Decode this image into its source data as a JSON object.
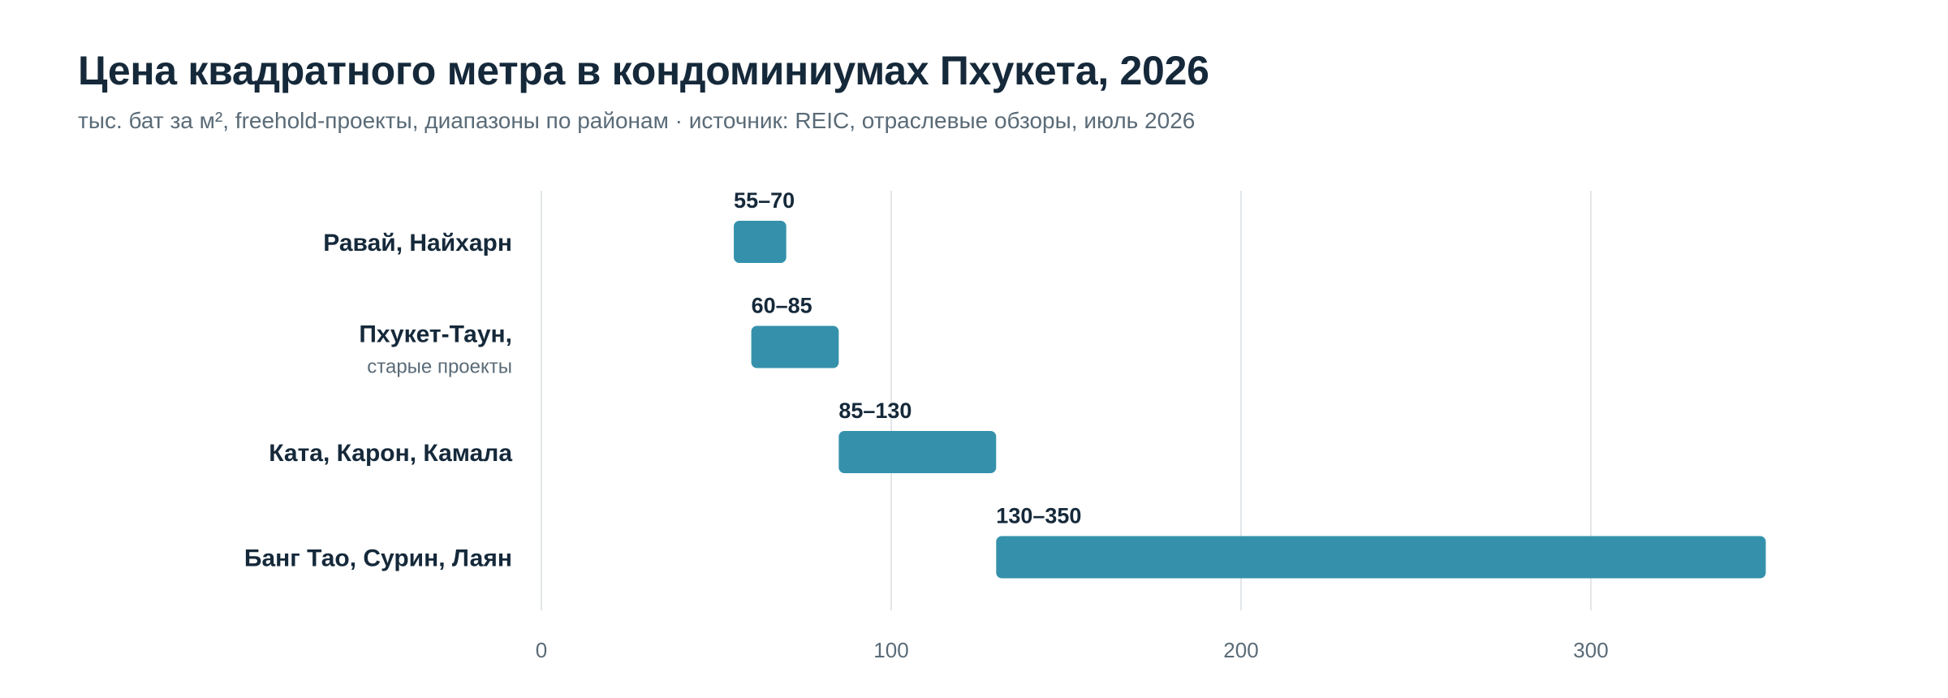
{
  "header": {
    "title": "Цена квадратного метра в кондоминиумах Пхукета, 2026",
    "subtitle": "тыс. бат за м², freehold-проекты, диапазоны по районам · источник: REIC, отраслевые обзоры, июль 2026"
  },
  "chart_data": {
    "type": "bar",
    "orientation": "horizontal",
    "bar_style": "floating-range",
    "title": "Цена квадратного метра в кондоминиумах Пхукета, 2026",
    "subtitle": "тыс. бат за м², freehold-проекты, диапазоны по районам · источник: REIC, отраслевые обзоры, июль 2026",
    "xlabel": "",
    "ylabel": "",
    "xlim": [
      0,
      350
    ],
    "xticks": [
      0,
      100,
      200,
      300
    ],
    "grid": true,
    "legend": "none",
    "bar_color": "#3591ab",
    "categories": [
      {
        "name": "Равай, Найхарн",
        "sub": "",
        "low": 55,
        "high": 70,
        "label": "55–70"
      },
      {
        "name": "Пхукет-Таун,",
        "sub": "старые проекты",
        "low": 60,
        "high": 85,
        "label": "60–85"
      },
      {
        "name": "Ката, Карон, Камала",
        "sub": "",
        "low": 85,
        "high": 130,
        "label": "85–130"
      },
      {
        "name": "Банг Тао, Сурин, Лаян",
        "sub": "",
        "low": 130,
        "high": 350,
        "label": "130–350"
      }
    ]
  },
  "colors": {
    "bar": "#3591ab",
    "text_dark": "#15293a",
    "text_muted": "#5a6b77",
    "grid": "#e3e6e9"
  }
}
